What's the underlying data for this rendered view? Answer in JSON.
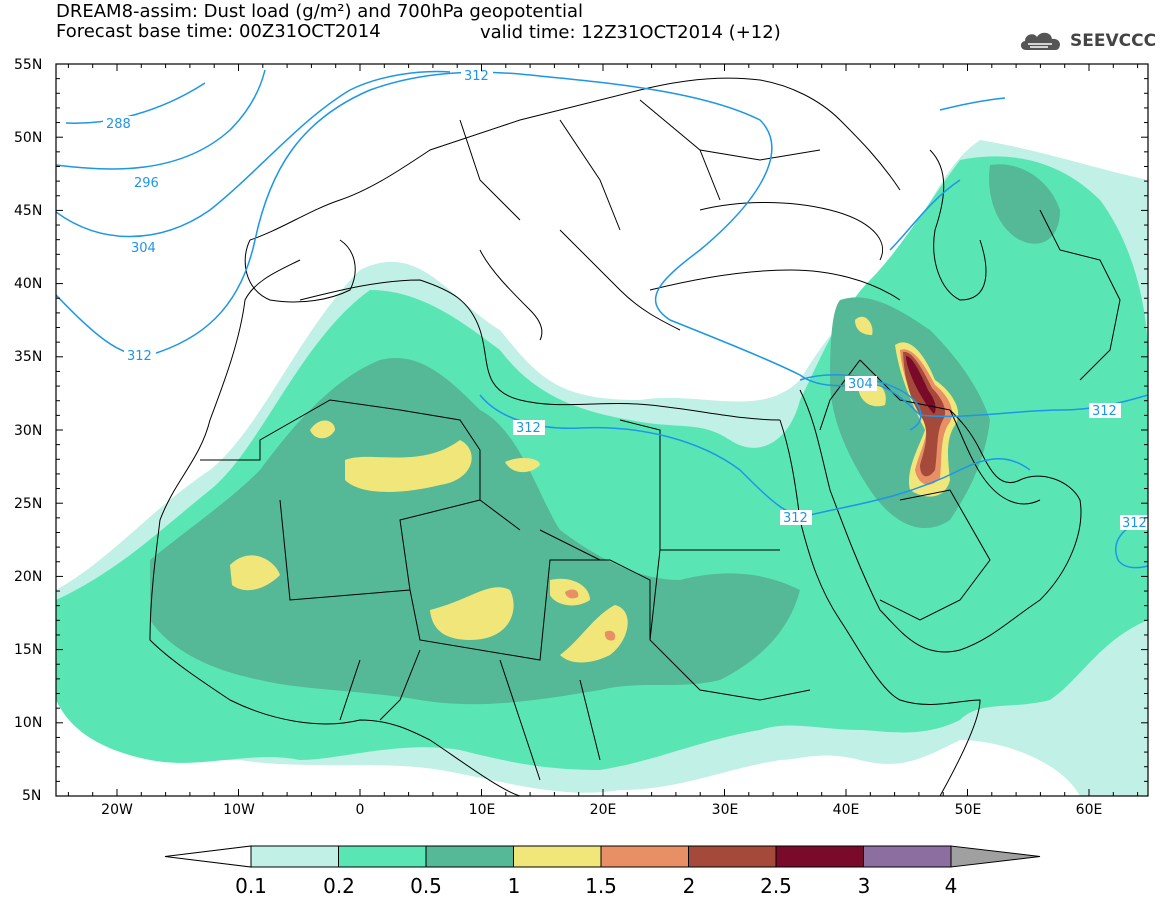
{
  "header": {
    "title_line1": "DREAM8-assim: Dust load (g/m²) and 700hPa geopotential",
    "title_line2": "Forecast base time: 00Z31OCT2014",
    "valid_time": "valid time: 12Z31OCT2014 (+12)",
    "logo_text": "SEEVCCC"
  },
  "map": {
    "lat_labels": [
      "55N",
      "50N",
      "45N",
      "40N",
      "35N",
      "30N",
      "25N",
      "20N",
      "15N",
      "10N",
      "5N"
    ],
    "lon_labels": [
      "20W",
      "10W",
      "0",
      "10E",
      "20E",
      "30E",
      "40E",
      "50E",
      "60E"
    ],
    "contour_labels": [
      "288",
      "296",
      "304",
      "312",
      "312",
      "312",
      "312",
      "304",
      "312",
      "312"
    ],
    "colors": {
      "coast": "#000000",
      "contour": "#1e96e6"
    }
  },
  "colorbar": {
    "ticks": [
      "0.1",
      "0.2",
      "0.5",
      "1",
      "1.5",
      "2",
      "2.5",
      "3",
      "4"
    ],
    "colors": [
      "#c0f0e6",
      "#5ae6b4",
      "#55b896",
      "#f0e67a",
      "#e88f65",
      "#a54a3a",
      "#7a0a2a",
      "#8c6fa0"
    ],
    "under_color": "#ffffff",
    "over_color": "#a0a0a0"
  }
}
